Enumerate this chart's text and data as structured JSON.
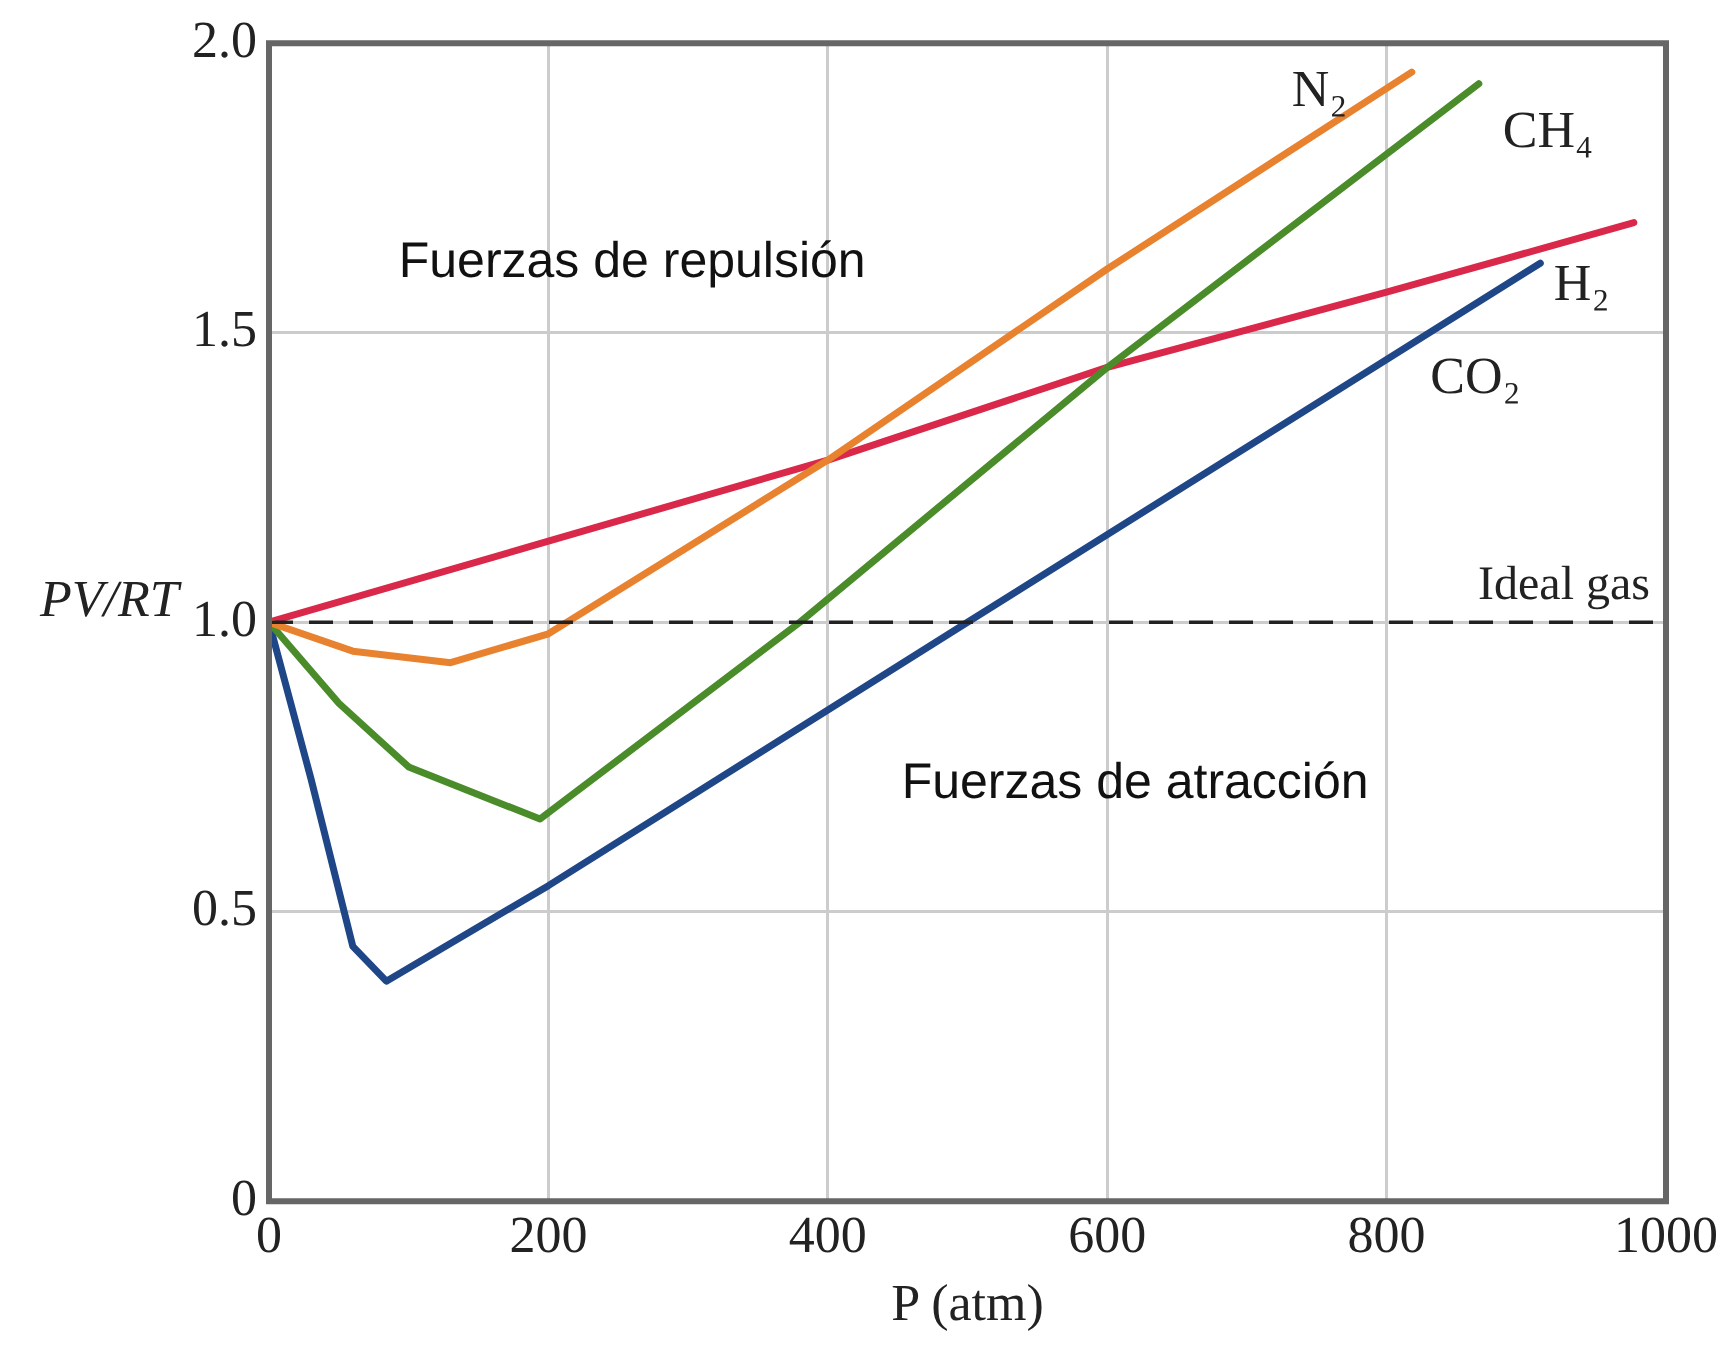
{
  "chart_data": {
    "type": "line",
    "xlabel": "P (atm)",
    "ylabel": "PV/RT",
    "xlim": [
      0,
      1000
    ],
    "xticks": [
      0,
      200,
      400,
      600,
      800,
      1000
    ],
    "ylim": [
      0,
      2.0
    ],
    "yticks": [
      0,
      {
        "value": 0.5,
        "label": "0.5"
      },
      {
        "value": 1.0,
        "label": "1.0"
      },
      {
        "value": 1.5,
        "label": "1.5"
      },
      {
        "value": 2.0,
        "label": "2.0"
      }
    ],
    "grid": true,
    "legend": false,
    "marker": "none",
    "line_style": "solid",
    "series": [
      {
        "name": "N₂",
        "color": "#e9822f",
        "x": [
          0,
          60,
          130,
          200,
          400,
          600,
          818
        ],
        "values": [
          1.0,
          0.95,
          0.93,
          0.98,
          1.28,
          1.61,
          1.95
        ]
      },
      {
        "name": "CH₄",
        "color": "#4a8c2a",
        "x": [
          0,
          50,
          100,
          194,
          380,
          600,
          866
        ],
        "values": [
          1.0,
          0.86,
          0.75,
          0.66,
          1.0,
          1.44,
          1.93
        ]
      },
      {
        "name": "H₂",
        "color": "#d9284a",
        "x": [
          0,
          200,
          400,
          600,
          800,
          977
        ],
        "values": [
          1.0,
          1.14,
          1.28,
          1.44,
          1.57,
          1.69
        ]
      },
      {
        "name": "CO₂",
        "color": "#1f4788",
        "x": [
          0,
          30,
          60,
          84,
          200,
          500,
          910
        ],
        "values": [
          1.0,
          0.73,
          0.44,
          0.38,
          0.545,
          1.0,
          1.62
        ]
      }
    ],
    "ref_lines": [
      {
        "axis": "y",
        "value": 1.0,
        "label": "Ideal gas",
        "color": "#222222",
        "line_style": "dashed"
      }
    ],
    "annotations": [
      "Fuerzas de repulsión",
      "Fuerzas de atracción"
    ]
  }
}
